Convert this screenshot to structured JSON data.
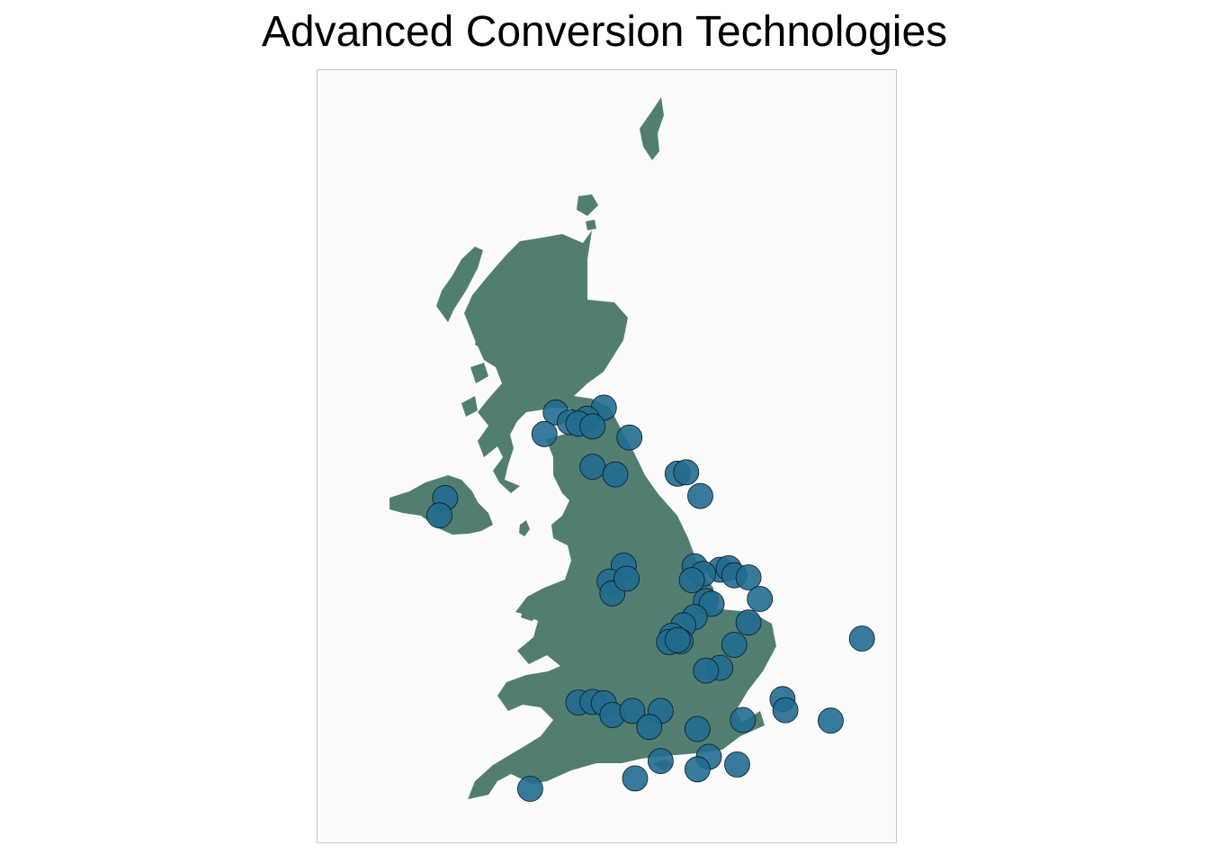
{
  "title": "Advanced Conversion Technologies",
  "colors": {
    "panel_background": "#fbfbfb",
    "panel_border": "#c8c8c8",
    "land_fill": "#527e72",
    "marker_fill": "#226c90",
    "marker_stroke": "#0a1a22"
  },
  "marker_opacity": 0.9,
  "map_extent": {
    "lon": [
      -8.3,
      1.9
    ],
    "lat": [
      49.8,
      60.9
    ]
  },
  "sites": [
    {
      "lon": -4.1,
      "lat": 55.98
    },
    {
      "lon": -3.25,
      "lat": 56.05
    },
    {
      "lon": -3.55,
      "lat": 55.89
    },
    {
      "lon": -3.85,
      "lat": 55.84
    },
    {
      "lon": -3.7,
      "lat": 55.82
    },
    {
      "lon": -3.45,
      "lat": 55.78
    },
    {
      "lon": -4.3,
      "lat": 55.67
    },
    {
      "lon": -2.8,
      "lat": 55.62
    },
    {
      "lon": -3.45,
      "lat": 55.2
    },
    {
      "lon": -3.05,
      "lat": 55.09
    },
    {
      "lon": -1.95,
      "lat": 55.1
    },
    {
      "lon": -1.8,
      "lat": 55.12
    },
    {
      "lon": -1.55,
      "lat": 54.78
    },
    {
      "lon": -6.05,
      "lat": 54.75
    },
    {
      "lon": -6.15,
      "lat": 54.5
    },
    {
      "lon": -2.9,
      "lat": 53.78
    },
    {
      "lon": -1.65,
      "lat": 53.77
    },
    {
      "lon": -1.2,
      "lat": 53.72
    },
    {
      "lon": -1.05,
      "lat": 53.74
    },
    {
      "lon": -0.95,
      "lat": 53.64
    },
    {
      "lon": -0.7,
      "lat": 53.61
    },
    {
      "lon": -1.5,
      "lat": 53.66
    },
    {
      "lon": -1.7,
      "lat": 53.57
    },
    {
      "lon": -3.15,
      "lat": 53.55
    },
    {
      "lon": -3.1,
      "lat": 53.38
    },
    {
      "lon": -2.85,
      "lat": 53.59
    },
    {
      "lon": -0.5,
      "lat": 53.3
    },
    {
      "lon": -1.45,
      "lat": 53.27
    },
    {
      "lon": -1.35,
      "lat": 53.23
    },
    {
      "lon": -1.65,
      "lat": 53.04
    },
    {
      "lon": -1.85,
      "lat": 52.92
    },
    {
      "lon": -0.7,
      "lat": 52.96
    },
    {
      "lon": 1.3,
      "lat": 52.73
    },
    {
      "lon": -2.05,
      "lat": 52.77
    },
    {
      "lon": -1.9,
      "lat": 52.69
    },
    {
      "lon": -2.1,
      "lat": 52.68
    },
    {
      "lon": -1.95,
      "lat": 52.71
    },
    {
      "lon": -0.95,
      "lat": 52.64
    },
    {
      "lon": -1.2,
      "lat": 52.31
    },
    {
      "lon": -1.45,
      "lat": 52.27
    },
    {
      "lon": -3.7,
      "lat": 51.81
    },
    {
      "lon": -3.45,
      "lat": 51.82
    },
    {
      "lon": -3.25,
      "lat": 51.8
    },
    {
      "lon": -3.1,
      "lat": 51.63
    },
    {
      "lon": -2.75,
      "lat": 51.69
    },
    {
      "lon": -2.25,
      "lat": 51.69
    },
    {
      "lon": -0.1,
      "lat": 51.86
    },
    {
      "lon": -0.05,
      "lat": 51.7
    },
    {
      "lon": 0.75,
      "lat": 51.55
    },
    {
      "lon": -0.8,
      "lat": 51.56
    },
    {
      "lon": -2.45,
      "lat": 51.46
    },
    {
      "lon": -1.6,
      "lat": 51.43
    },
    {
      "lon": -1.4,
      "lat": 51.03
    },
    {
      "lon": -0.9,
      "lat": 50.92
    },
    {
      "lon": -2.25,
      "lat": 50.97
    },
    {
      "lon": -1.6,
      "lat": 50.85
    },
    {
      "lon": -2.7,
      "lat": 50.72
    },
    {
      "lon": -4.55,
      "lat": 50.57
    }
  ]
}
